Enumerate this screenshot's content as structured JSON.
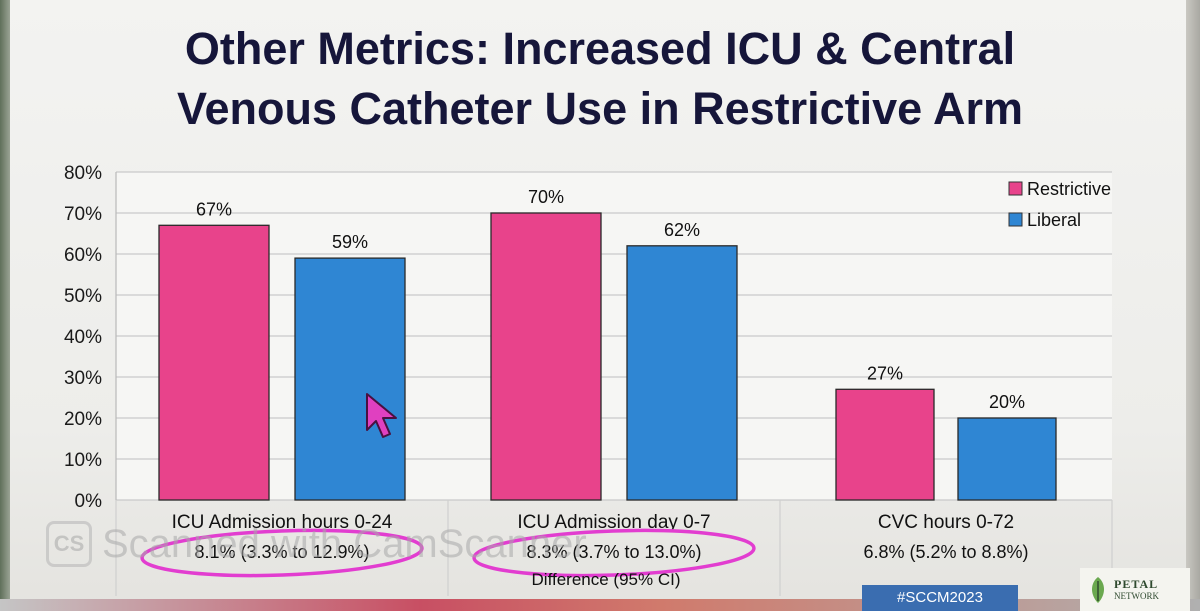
{
  "slide": {
    "title_line1": "Other Metrics: Increased ICU & Central",
    "title_line2": "Venous Catheter Use in Restrictive Arm",
    "watermark_text": "Scanned with CamScanner",
    "watermark_logo": "CS",
    "hashtag": "#SCCM2023",
    "petal_name": "PETAL",
    "petal_sub": "NETWORK",
    "cursor_color": "#e040c0"
  },
  "chart_data": {
    "type": "bar",
    "title": "",
    "ylim": [
      0,
      80
    ],
    "yticks": [
      "0%",
      "10%",
      "20%",
      "30%",
      "40%",
      "50%",
      "60%",
      "70%",
      "80%"
    ],
    "grid": true,
    "legend_position": "top-right",
    "categories": [
      "ICU Admission hours 0-24",
      "ICU Admission day 0-7",
      "CVC hours 0-72"
    ],
    "differences": [
      "8.1%  (3.3% to 12.9%)",
      "8.3%  (3.7% to 13.0%)",
      "6.8% (5.2% to 8.8%)"
    ],
    "difference_label": "Difference (95% CI)",
    "series": [
      {
        "name": "Restrictive",
        "color": "#e8438b",
        "values": [
          67,
          70,
          27
        ],
        "labels": [
          "67%",
          "70%",
          "27%"
        ]
      },
      {
        "name": "Liberal",
        "color": "#2f86d3",
        "values": [
          59,
          62,
          20
        ],
        "labels": [
          "59%",
          "62%",
          "20%"
        ]
      }
    ],
    "highlight_color": "#e23dd0"
  }
}
